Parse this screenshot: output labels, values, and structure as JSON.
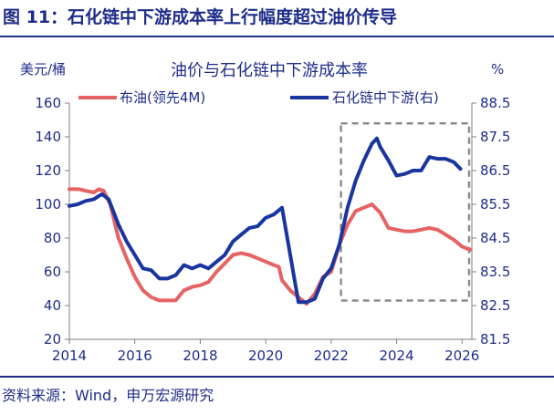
{
  "figure": {
    "title": "图 11：石化链中下游成本率上行幅度超过油价传导",
    "source": "资料来源：Wind，申万宏源研究"
  },
  "chart_data": {
    "type": "line",
    "title": "油价与石化链中下游成本率",
    "y_left_unit": "美元/桶",
    "y_right_unit": "%",
    "x_ticks": [
      "2014",
      "2016",
      "2018",
      "2020",
      "2022",
      "2024",
      "2026"
    ],
    "y_left_ticks": [
      "20",
      "40",
      "60",
      "80",
      "100",
      "120",
      "140",
      "160"
    ],
    "y_right_ticks": [
      "81.5",
      "82.5",
      "83.5",
      "84.5",
      "85.5",
      "86.5",
      "87.5",
      "88.5"
    ],
    "xlim": [
      2014,
      2026.3
    ],
    "ylim_left": [
      20,
      160
    ],
    "ylim_right": [
      81.5,
      88.5
    ],
    "grid": false,
    "legend_placement": "top",
    "highlight_box": {
      "x_range": [
        2022.3,
        2026.3
      ],
      "y_left_range": [
        43,
        148
      ],
      "style": "dashed gray"
    },
    "series": [
      {
        "name": "布油(领先4M)",
        "axis": "left",
        "color": "#e66363",
        "x": [
          2014.0,
          2014.3,
          2014.5,
          2014.75,
          2014.9,
          2015.05,
          2015.25,
          2015.5,
          2015.75,
          2016.0,
          2016.25,
          2016.5,
          2016.75,
          2017.0,
          2017.25,
          2017.5,
          2017.75,
          2018.0,
          2018.25,
          2018.5,
          2018.75,
          2019.0,
          2019.25,
          2019.5,
          2019.75,
          2020.0,
          2020.25,
          2020.4,
          2020.5,
          2020.75,
          2021.0,
          2021.25,
          2021.5,
          2021.75,
          2022.0,
          2022.25,
          2022.5,
          2022.75,
          2023.0,
          2023.25,
          2023.5,
          2023.75,
          2024.0,
          2024.25,
          2024.5,
          2024.75,
          2025.0,
          2025.25,
          2025.5,
          2025.75,
          2026.0,
          2026.25
        ],
        "y": [
          109,
          109,
          108,
          107,
          109,
          108,
          100,
          80,
          68,
          57,
          49,
          45,
          43,
          43,
          43,
          49,
          51,
          52,
          54,
          60,
          65,
          70,
          71,
          70,
          68,
          66,
          64,
          63,
          55,
          49,
          45,
          41,
          47,
          57,
          60,
          76,
          88,
          96,
          98,
          100,
          95,
          86,
          85,
          84,
          84,
          85,
          86,
          85,
          82,
          79,
          75,
          73
        ]
      },
      {
        "name": "石化链中下游(右)",
        "axis": "right",
        "color": "#1a35a0",
        "x": [
          2014.0,
          2014.25,
          2014.5,
          2014.75,
          2014.9,
          2015.0,
          2015.2,
          2015.5,
          2015.75,
          2016.0,
          2016.25,
          2016.5,
          2016.75,
          2017.0,
          2017.25,
          2017.5,
          2017.75,
          2018.0,
          2018.25,
          2018.5,
          2018.75,
          2019.0,
          2019.25,
          2019.5,
          2019.75,
          2020.0,
          2020.25,
          2020.5,
          2020.75,
          2021.0,
          2021.25,
          2021.5,
          2021.75,
          2022.0,
          2022.25,
          2022.5,
          2022.75,
          2023.0,
          2023.25,
          2023.4,
          2023.5,
          2023.75,
          2024.0,
          2024.25,
          2024.5,
          2024.75,
          2025.0,
          2025.25,
          2025.5,
          2025.75,
          2025.95
        ],
        "y": [
          85.45,
          85.5,
          85.6,
          85.65,
          85.75,
          85.8,
          85.65,
          84.9,
          84.4,
          84.0,
          83.6,
          83.55,
          83.3,
          83.3,
          83.4,
          83.7,
          83.6,
          83.7,
          83.6,
          83.8,
          84.0,
          84.4,
          84.6,
          84.8,
          84.85,
          85.1,
          85.2,
          85.4,
          84.0,
          82.6,
          82.6,
          82.7,
          83.3,
          83.6,
          84.3,
          85.4,
          86.2,
          86.8,
          87.3,
          87.45,
          87.2,
          86.8,
          86.35,
          86.4,
          86.5,
          86.5,
          86.9,
          86.85,
          86.85,
          86.75,
          86.55
        ]
      }
    ]
  }
}
